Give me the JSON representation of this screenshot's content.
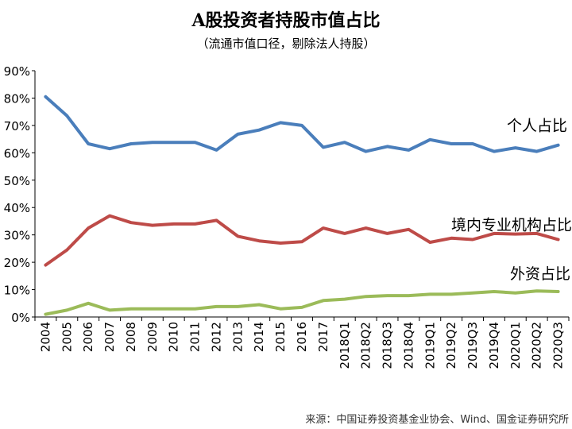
{
  "title": "A股投资者持股市值占比",
  "subtitle": "（流通市值口径，剔除法人持股）",
  "source": "来源：中国证券投资基金业协会、Wind、国金证券研究所",
  "chart_data": {
    "type": "line",
    "categories": [
      "2004",
      "2005",
      "2006",
      "2007",
      "2008",
      "2009",
      "2010",
      "2011",
      "2012",
      "2013",
      "2014",
      "2015",
      "2016",
      "2017",
      "2018Q1",
      "2018Q2",
      "2018Q3",
      "2018Q4",
      "2019Q1",
      "2019Q2",
      "2019Q3",
      "2019Q4",
      "2020Q1",
      "2020Q2",
      "2020Q3"
    ],
    "yticks": [
      "0%",
      "10%",
      "20%",
      "30%",
      "40%",
      "50%",
      "60%",
      "70%",
      "80%",
      "90%"
    ],
    "ylim": [
      0,
      90
    ],
    "grid": false,
    "series": [
      {
        "name": "个人占比",
        "color": "#4a7ebb",
        "values": [
          80.5,
          73.5,
          63.3,
          61.5,
          63.3,
          63.8,
          63.8,
          63.8,
          61,
          66.8,
          68.3,
          71,
          70,
          62,
          63.8,
          60.5,
          62.3,
          61,
          64.8,
          63.3,
          63.3,
          60.5,
          61.8,
          60.5,
          62.8
        ]
      },
      {
        "name": "境内专业机构占比",
        "color": "#be4b48",
        "values": [
          19,
          24.5,
          32.5,
          37,
          34.5,
          33.5,
          34,
          34,
          35.3,
          29.5,
          27.8,
          27,
          27.5,
          32.5,
          30.5,
          32.5,
          30.5,
          32,
          27.3,
          28.8,
          28.3,
          30.5,
          30.3,
          30.5,
          28.3
        ]
      },
      {
        "name": "外资占比",
        "color": "#9bbb59",
        "values": [
          1,
          2.5,
          5,
          2.5,
          3,
          3,
          3,
          3,
          3.8,
          3.8,
          4.5,
          3,
          3.5,
          6,
          6.5,
          7.5,
          7.8,
          7.8,
          8.3,
          8.3,
          8.8,
          9.3,
          8.8,
          9.5,
          9.3
        ]
      }
    ]
  }
}
